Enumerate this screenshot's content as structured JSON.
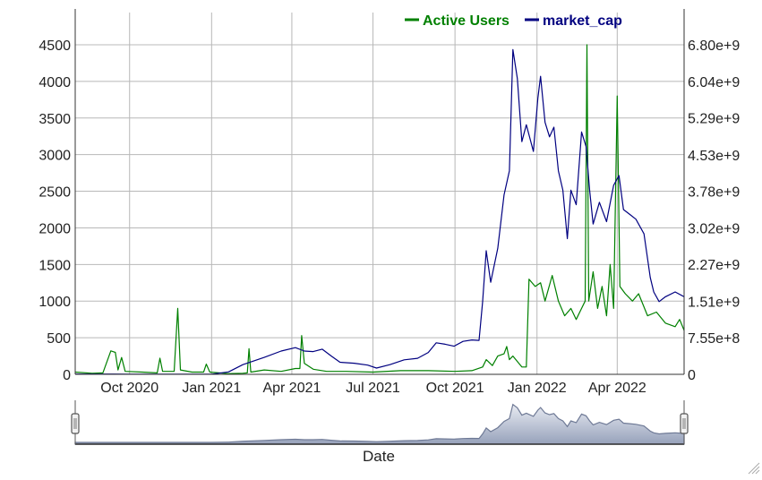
{
  "chart_data": {
    "type": "line",
    "title": "",
    "xlabel": "Date",
    "ylabel_left": "",
    "ylabel_right": "",
    "x_range": [
      "2020-08-01",
      "2022-06-15"
    ],
    "x_ticks": [
      {
        "date": "2020-10-01",
        "label": "Oct 2020"
      },
      {
        "date": "2021-01-01",
        "label": "Jan 2021"
      },
      {
        "date": "2021-04-01",
        "label": "Apr 2021"
      },
      {
        "date": "2021-07-01",
        "label": "Jul 2021"
      },
      {
        "date": "2021-10-01",
        "label": "Oct 2021"
      },
      {
        "date": "2022-01-01",
        "label": "Jan 2022"
      },
      {
        "date": "2022-04-01",
        "label": "Apr 2022"
      }
    ],
    "y_left": {
      "range": [
        0,
        4500
      ],
      "ticks": [
        0,
        500,
        1000,
        1500,
        2000,
        2500,
        3000,
        3500,
        4000,
        4500
      ],
      "tick_labels": [
        "0",
        "500",
        "1000",
        "1500",
        "2000",
        "2500",
        "3000",
        "3500",
        "4000",
        "4500"
      ]
    },
    "y_right": {
      "range": [
        0,
        6800000000
      ],
      "ticks": [
        0,
        755000000,
        1510000000,
        2270000000,
        3020000000,
        3780000000,
        4530000000,
        5290000000,
        6040000000,
        6800000000
      ],
      "tick_labels": [
        "0",
        "7.55e+8",
        "1.51e+9",
        "2.27e+9",
        "3.02e+9",
        "3.78e+9",
        "4.53e+9",
        "5.29e+9",
        "6.04e+9",
        "6.80e+9"
      ]
    },
    "grid": true,
    "legend_position": "top-right",
    "legend": [
      "Active Users",
      "market_cap"
    ],
    "series": [
      {
        "name": "Active Users",
        "axis": "left",
        "color": "#008000",
        "points": [
          [
            "2020-08-01",
            30
          ],
          [
            "2020-08-20",
            15
          ],
          [
            "2020-09-01",
            20
          ],
          [
            "2020-09-10",
            320
          ],
          [
            "2020-09-15",
            300
          ],
          [
            "2020-09-18",
            60
          ],
          [
            "2020-09-22",
            230
          ],
          [
            "2020-09-26",
            40
          ],
          [
            "2020-10-15",
            30
          ],
          [
            "2020-11-01",
            20
          ],
          [
            "2020-11-04",
            220
          ],
          [
            "2020-11-07",
            40
          ],
          [
            "2020-11-20",
            40
          ],
          [
            "2020-11-24",
            900
          ],
          [
            "2020-11-27",
            60
          ],
          [
            "2020-12-10",
            30
          ],
          [
            "2020-12-23",
            30
          ],
          [
            "2020-12-26",
            140
          ],
          [
            "2020-12-30",
            30
          ],
          [
            "2021-01-20",
            10
          ],
          [
            "2021-02-05",
            15
          ],
          [
            "2021-02-10",
            20
          ],
          [
            "2021-02-12",
            350
          ],
          [
            "2021-02-14",
            30
          ],
          [
            "2021-03-01",
            60
          ],
          [
            "2021-03-20",
            40
          ],
          [
            "2021-04-05",
            80
          ],
          [
            "2021-04-10",
            80
          ],
          [
            "2021-04-12",
            530
          ],
          [
            "2021-04-15",
            150
          ],
          [
            "2021-04-25",
            70
          ],
          [
            "2021-05-10",
            40
          ],
          [
            "2021-06-01",
            40
          ],
          [
            "2021-07-01",
            30
          ],
          [
            "2021-08-01",
            50
          ],
          [
            "2021-09-01",
            50
          ],
          [
            "2021-10-01",
            40
          ],
          [
            "2021-10-20",
            50
          ],
          [
            "2021-11-01",
            100
          ],
          [
            "2021-11-05",
            200
          ],
          [
            "2021-11-12",
            120
          ],
          [
            "2021-11-18",
            250
          ],
          [
            "2021-11-25",
            280
          ],
          [
            "2021-11-28",
            380
          ],
          [
            "2021-12-01",
            200
          ],
          [
            "2021-12-05",
            250
          ],
          [
            "2021-12-15",
            100
          ],
          [
            "2021-12-20",
            100
          ],
          [
            "2021-12-23",
            1300
          ],
          [
            "2021-12-30",
            1200
          ],
          [
            "2022-01-05",
            1250
          ],
          [
            "2022-01-10",
            1000
          ],
          [
            "2022-01-18",
            1350
          ],
          [
            "2022-01-25",
            1000
          ],
          [
            "2022-02-01",
            800
          ],
          [
            "2022-02-08",
            900
          ],
          [
            "2022-02-14",
            750
          ],
          [
            "2022-02-20",
            900
          ],
          [
            "2022-02-24",
            1000
          ],
          [
            "2022-02-26",
            4500
          ],
          [
            "2022-02-28",
            1000
          ],
          [
            "2022-03-05",
            1400
          ],
          [
            "2022-03-10",
            900
          ],
          [
            "2022-03-15",
            1200
          ],
          [
            "2022-03-20",
            800
          ],
          [
            "2022-03-24",
            1500
          ],
          [
            "2022-03-28",
            900
          ],
          [
            "2022-04-01",
            3800
          ],
          [
            "2022-04-04",
            1200
          ],
          [
            "2022-04-10",
            1100
          ],
          [
            "2022-04-18",
            1000
          ],
          [
            "2022-04-25",
            1100
          ],
          [
            "2022-05-05",
            800
          ],
          [
            "2022-05-15",
            850
          ],
          [
            "2022-05-25",
            700
          ],
          [
            "2022-06-05",
            650
          ],
          [
            "2022-06-10",
            750
          ],
          [
            "2022-06-15",
            600
          ]
        ]
      },
      {
        "name": "market_cap",
        "axis": "right",
        "color": "#000080",
        "points": [
          [
            "2020-08-01",
            5000000
          ],
          [
            "2020-10-01",
            4000000
          ],
          [
            "2021-01-01",
            3000000
          ],
          [
            "2021-01-20",
            50000000
          ],
          [
            "2021-02-05",
            200000000
          ],
          [
            "2021-03-01",
            350000000
          ],
          [
            "2021-03-20",
            480000000
          ],
          [
            "2021-04-05",
            550000000
          ],
          [
            "2021-04-15",
            480000000
          ],
          [
            "2021-04-25",
            470000000
          ],
          [
            "2021-05-05",
            520000000
          ],
          [
            "2021-05-15",
            380000000
          ],
          [
            "2021-05-25",
            250000000
          ],
          [
            "2021-06-10",
            230000000
          ],
          [
            "2021-06-25",
            190000000
          ],
          [
            "2021-07-05",
            130000000
          ],
          [
            "2021-07-20",
            200000000
          ],
          [
            "2021-08-05",
            300000000
          ],
          [
            "2021-08-20",
            330000000
          ],
          [
            "2021-09-01",
            450000000
          ],
          [
            "2021-09-10",
            650000000
          ],
          [
            "2021-09-20",
            620000000
          ],
          [
            "2021-09-30",
            580000000
          ],
          [
            "2021-10-10",
            680000000
          ],
          [
            "2021-10-20",
            710000000
          ],
          [
            "2021-10-28",
            700000000
          ],
          [
            "2021-11-01",
            1500000000
          ],
          [
            "2021-11-05",
            2550000000
          ],
          [
            "2021-11-10",
            1900000000
          ],
          [
            "2021-11-18",
            2600000000
          ],
          [
            "2021-11-25",
            3700000000
          ],
          [
            "2021-12-01",
            4200000000
          ],
          [
            "2021-12-05",
            6700000000
          ],
          [
            "2021-12-10",
            6100000000
          ],
          [
            "2021-12-15",
            4800000000
          ],
          [
            "2021-12-20",
            5150000000
          ],
          [
            "2021-12-28",
            4600000000
          ],
          [
            "2022-01-02",
            5700000000
          ],
          [
            "2022-01-05",
            6150000000
          ],
          [
            "2022-01-10",
            5200000000
          ],
          [
            "2022-01-15",
            4900000000
          ],
          [
            "2022-01-20",
            5100000000
          ],
          [
            "2022-01-25",
            4200000000
          ],
          [
            "2022-01-30",
            3800000000
          ],
          [
            "2022-02-04",
            2800000000
          ],
          [
            "2022-02-08",
            3800000000
          ],
          [
            "2022-02-14",
            3500000000
          ],
          [
            "2022-02-20",
            5000000000
          ],
          [
            "2022-02-25",
            4700000000
          ],
          [
            "2022-03-01",
            3800000000
          ],
          [
            "2022-03-05",
            3100000000
          ],
          [
            "2022-03-12",
            3550000000
          ],
          [
            "2022-03-20",
            3150000000
          ],
          [
            "2022-03-28",
            3900000000
          ],
          [
            "2022-04-03",
            4100000000
          ],
          [
            "2022-04-08",
            3400000000
          ],
          [
            "2022-04-15",
            3300000000
          ],
          [
            "2022-04-22",
            3200000000
          ],
          [
            "2022-05-01",
            2900000000
          ],
          [
            "2022-05-08",
            2000000000
          ],
          [
            "2022-05-12",
            1700000000
          ],
          [
            "2022-05-18",
            1500000000
          ],
          [
            "2022-05-25",
            1600000000
          ],
          [
            "2022-06-05",
            1700000000
          ],
          [
            "2022-06-15",
            1600000000
          ]
        ]
      }
    ],
    "range_slider": {
      "xlabel": "Date",
      "handles": "both-ends"
    }
  }
}
